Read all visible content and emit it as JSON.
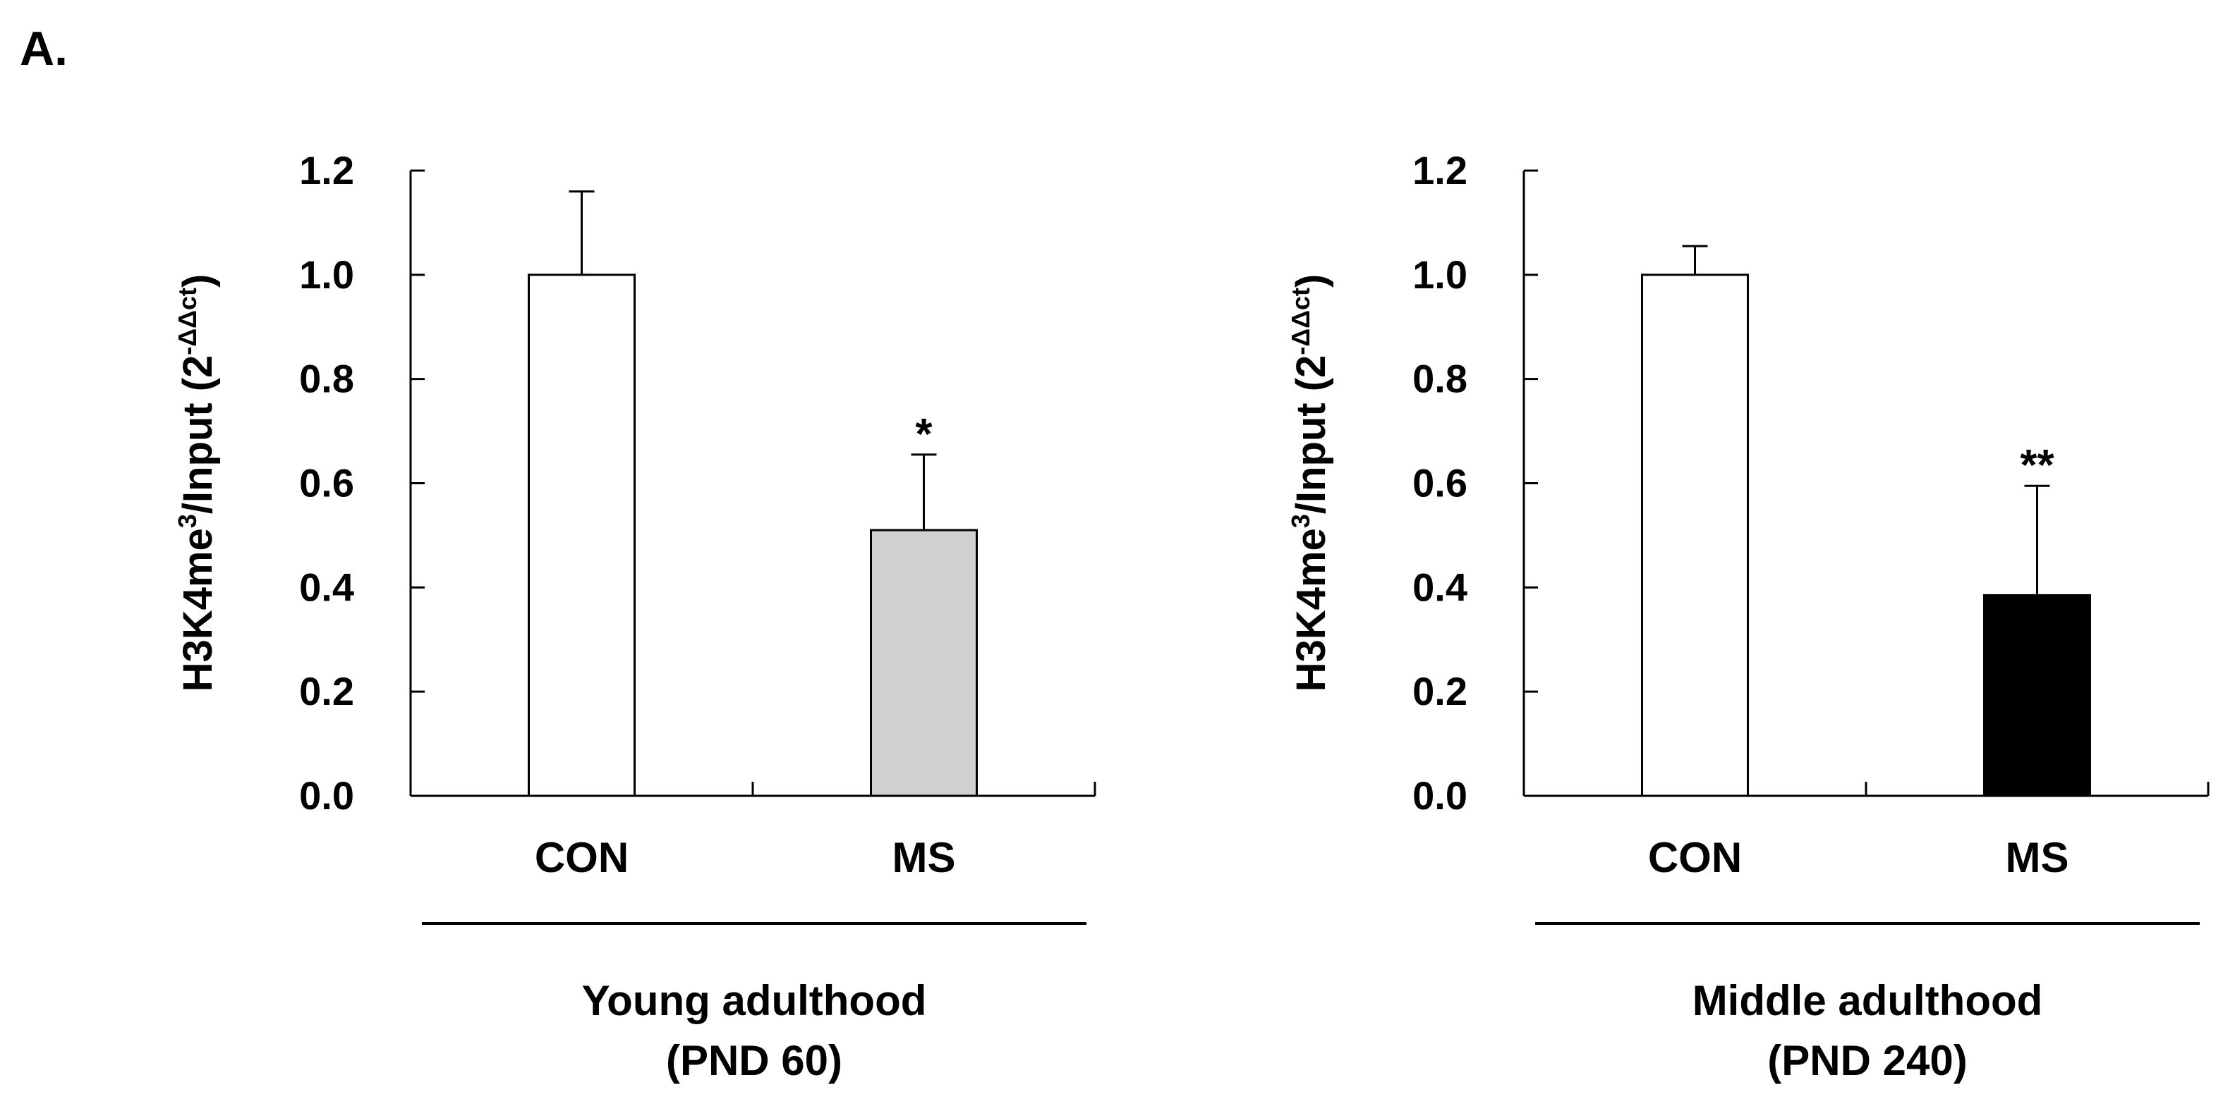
{
  "figure": {
    "panel_label": "A."
  },
  "chart_data": [
    {
      "type": "bar",
      "title": "",
      "group_label_line1": "Young adulthood",
      "group_label_line2": "(PND 60)",
      "ylabel": {
        "pre": "H3K4me",
        "sup1": "3",
        "mid": "/Input (2",
        "sup2": "-ΔΔct",
        "post": ")"
      },
      "ylim": [
        0,
        1.2
      ],
      "yticks": [
        "0.0",
        "0.2",
        "0.4",
        "0.6",
        "0.8",
        "1.0",
        "1.2"
      ],
      "categories": [
        "CON",
        "MS"
      ],
      "values": [
        1.0,
        0.51
      ],
      "errors": [
        0.16,
        0.145
      ],
      "colors": [
        "#ffffff",
        "#d0d0d0"
      ],
      "significance": [
        "",
        "*"
      ],
      "grid": false,
      "legend": "none"
    },
    {
      "type": "bar",
      "title": "",
      "group_label_line1": "Middle adulthood",
      "group_label_line2": "(PND 240)",
      "ylabel": {
        "pre": "H3K4me",
        "sup1": "3",
        "mid": "/Input (2",
        "sup2": "-ΔΔct",
        "post": ")"
      },
      "ylim": [
        0,
        1.2
      ],
      "yticks": [
        "0.0",
        "0.2",
        "0.4",
        "0.6",
        "0.8",
        "1.0",
        "1.2"
      ],
      "categories": [
        "CON",
        "MS"
      ],
      "values": [
        1.0,
        0.385
      ],
      "errors": [
        0.055,
        0.21
      ],
      "colors": [
        "#ffffff",
        "#000000"
      ],
      "significance": [
        "",
        "**"
      ],
      "grid": false,
      "legend": "none"
    }
  ]
}
